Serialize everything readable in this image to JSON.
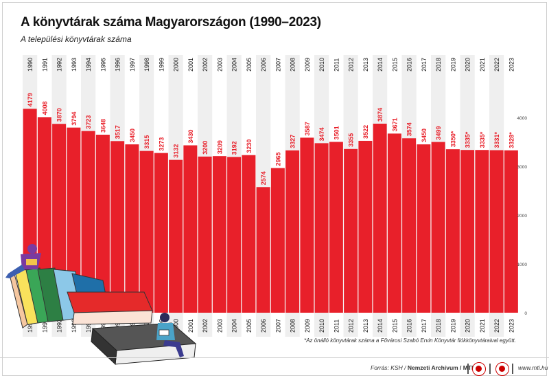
{
  "title": "A könyvtárak száma Magyarországon (1990–2023)",
  "subtitle": "A települési könyvtárak száma",
  "footnote": "*Az önálló könyvtárak száma a Fővárosi Szabó Ervin Könyvtár fiókkönyvtáraival együtt.",
  "footer": {
    "source_prefix": "Forrás: KSH / ",
    "source_bold": "Nemzeti Archívum / MTI",
    "site": "www.mti.hu"
  },
  "colors": {
    "bar": "#e8202a",
    "stripe": "#efefef",
    "text": "#111111",
    "label_on_bar": "#ffffff"
  },
  "chart_data": {
    "type": "bar",
    "categories": [
      "1990",
      "1991",
      "1992",
      "1993",
      "1994",
      "1995",
      "1996",
      "1997",
      "1998",
      "1999",
      "2000",
      "2001",
      "2002",
      "2003",
      "2004",
      "2005",
      "2006",
      "2007",
      "2008",
      "2009",
      "2010",
      "2011",
      "2012",
      "2013",
      "2014",
      "2015",
      "2016",
      "2017",
      "2018",
      "2019",
      "2020",
      "2021",
      "2022",
      "2023"
    ],
    "values": [
      4179,
      4008,
      3870,
      3794,
      3723,
      3648,
      3517,
      3450,
      3315,
      3273,
      3132,
      3430,
      3200,
      3209,
      3192,
      3230,
      2574,
      2965,
      3327,
      3587,
      3474,
      3501,
      3355,
      3522,
      3874,
      3671,
      3574,
      3450,
      3499,
      3350,
      3335,
      3335,
      3331,
      3328
    ],
    "value_labels": [
      "4179",
      "4008",
      "3870",
      "3794",
      "3723",
      "3648",
      "3517",
      "3450",
      "3315",
      "3273",
      "3132",
      "3430",
      "3200",
      "3209",
      "3192",
      "3230",
      "2574",
      "2965",
      "3327",
      "3587",
      "3474",
      "3501",
      "3355",
      "3522",
      "3874",
      "3671",
      "3574",
      "3450",
      "3499",
      "3350*",
      "3335*",
      "3335*",
      "3331*",
      "3328*"
    ],
    "y_ticks": [
      "0",
      "1000",
      "2000",
      "3000",
      "4000"
    ],
    "ylim": [
      0,
      4500
    ],
    "grid": false,
    "orientation": "vertical"
  }
}
